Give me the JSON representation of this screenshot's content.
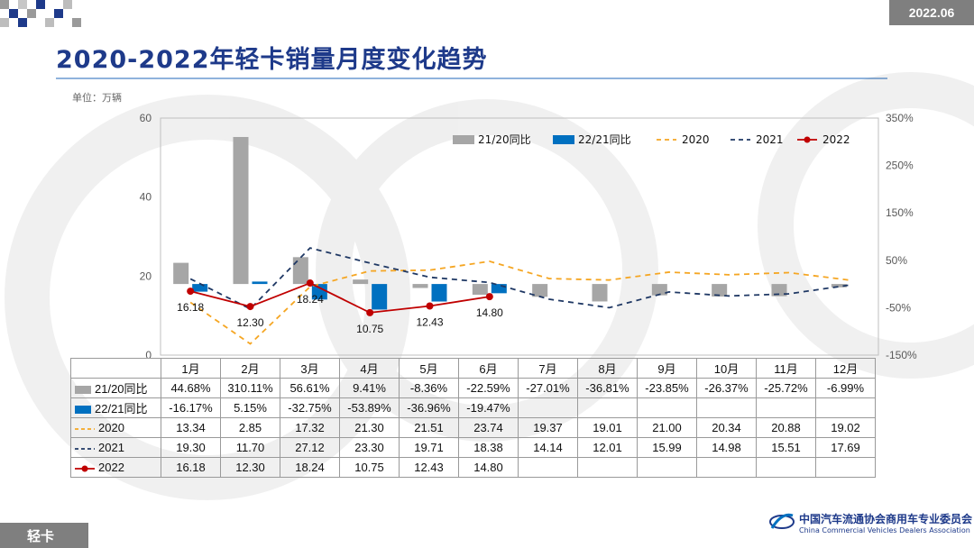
{
  "header": {
    "date_badge": "2022.06",
    "title": "2020-2022年轻卡销量月度变化趋势",
    "unit": "单位：万辆"
  },
  "footer": {
    "category": "轻卡",
    "org_name_cn": "中国汽车流通协会商用车专业委员会",
    "org_name_en": "China Commercial Vehicles Dealers Association"
  },
  "colors": {
    "bar_21_20": "#a6a6a6",
    "bar_22_21": "#0070c0",
    "line_2020": "#f5a623",
    "line_2021": "#1f3864",
    "line_2022": "#c00000",
    "title": "#1e3a8a"
  },
  "chart_data": {
    "type": "bar",
    "categories": [
      "1月",
      "2月",
      "3月",
      "4月",
      "5月",
      "6月",
      "7月",
      "8月",
      "9月",
      "10月",
      "11月",
      "12月"
    ],
    "y_left": {
      "ylim": [
        0,
        60
      ],
      "ticks": [
        "0",
        "20",
        "40",
        "60"
      ]
    },
    "y_right": {
      "ylim": [
        -150,
        350
      ],
      "ticks": [
        "350%",
        "250%",
        "150%",
        "50%",
        "-50%",
        "-150%"
      ]
    },
    "legend_position": "top-right",
    "series": [
      {
        "name": "21/20同比",
        "type": "bar",
        "axis": "right",
        "display": [
          "44.68%",
          "310.11%",
          "56.61%",
          "9.41%",
          "-8.36%",
          "-22.59%",
          "-27.01%",
          "-36.81%",
          "-23.85%",
          "-26.37%",
          "-25.72%",
          "-6.99%"
        ],
        "values": [
          44.68,
          310.11,
          56.61,
          9.41,
          -8.36,
          -22.59,
          -27.01,
          -36.81,
          -23.85,
          -26.37,
          -25.72,
          -6.99
        ]
      },
      {
        "name": "22/21同比",
        "type": "bar",
        "axis": "right",
        "display": [
          "-16.17%",
          "5.15%",
          "-32.75%",
          "-53.89%",
          "-36.96%",
          "-19.47%",
          "",
          "",
          "",
          "",
          "",
          ""
        ],
        "values": [
          -16.17,
          5.15,
          -32.75,
          -53.89,
          -36.96,
          -19.47,
          null,
          null,
          null,
          null,
          null,
          null
        ]
      },
      {
        "name": "2020",
        "type": "line",
        "axis": "left",
        "style": "dashed",
        "display": [
          "13.34",
          "2.85",
          "17.32",
          "21.30",
          "21.51",
          "23.74",
          "19.37",
          "19.01",
          "21.00",
          "20.34",
          "20.88",
          "19.02"
        ],
        "values": [
          13.34,
          2.85,
          17.32,
          21.3,
          21.51,
          23.74,
          19.37,
          19.01,
          21.0,
          20.34,
          20.88,
          19.02
        ]
      },
      {
        "name": "2021",
        "type": "line",
        "axis": "left",
        "style": "dashed",
        "display": [
          "19.30",
          "11.70",
          "27.12",
          "23.30",
          "19.71",
          "18.38",
          "14.14",
          "12.01",
          "15.99",
          "14.98",
          "15.51",
          "17.69"
        ],
        "values": [
          19.3,
          11.7,
          27.12,
          23.3,
          19.71,
          18.38,
          14.14,
          12.01,
          15.99,
          14.98,
          15.51,
          17.69
        ]
      },
      {
        "name": "2022",
        "type": "line",
        "axis": "left",
        "style": "solid-marker",
        "display": [
          "16.18",
          "12.30",
          "18.24",
          "10.75",
          "12.43",
          "14.80",
          "",
          "",
          "",
          "",
          "",
          ""
        ],
        "values": [
          16.18,
          12.3,
          18.24,
          10.75,
          12.43,
          14.8,
          null,
          null,
          null,
          null,
          null,
          null
        ],
        "point_labels": [
          "16.18",
          "12.30",
          "18.24",
          "10.75",
          "12.43",
          "14.80"
        ]
      }
    ]
  }
}
